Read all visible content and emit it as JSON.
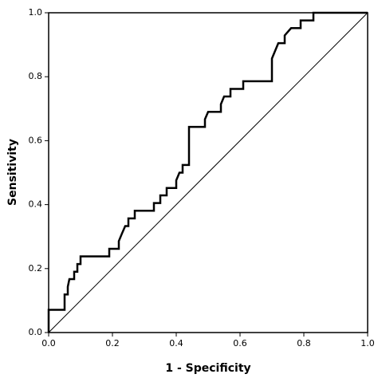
{
  "chart_data": {
    "type": "line",
    "xlabel": "1 - Specificity",
    "ylabel": "Sensitivity",
    "xlim": [
      0,
      1
    ],
    "ylim": [
      0,
      1
    ],
    "xticks": [
      {
        "value": 0,
        "label": "0.0"
      },
      0.2,
      0.4,
      0.6,
      0.8,
      {
        "value": 1,
        "label": "1.0"
      }
    ],
    "yticks": [
      {
        "value": 0,
        "label": "0.0"
      },
      0.2,
      0.4,
      0.6,
      0.8,
      {
        "value": 1,
        "label": "1.0"
      }
    ],
    "series": [
      {
        "color": "#000000",
        "x": [
          0,
          0,
          0.05,
          0.05,
          0.06,
          0.06,
          0.065,
          0.08,
          0.08,
          0.09,
          0.09,
          0.1,
          0.1,
          0.19,
          0.19,
          0.22,
          0.22,
          0.23,
          0.24,
          0.25,
          0.25,
          0.27,
          0.27,
          0.33,
          0.33,
          0.35,
          0.35,
          0.37,
          0.37,
          0.4,
          0.4,
          0.41,
          0.42,
          0.42,
          0.44,
          0.44,
          0.44,
          0.49,
          0.49,
          0.5,
          0.54,
          0.54,
          0.55,
          0.57,
          0.57,
          0.61,
          0.61,
          0.7,
          0.7,
          0.71,
          0.72,
          0.74,
          0.74,
          0.76,
          0.79,
          0.79,
          0.83,
          0.83,
          1
        ],
        "values": [
          0,
          0.071,
          0.071,
          0.119,
          0.119,
          0.143,
          0.167,
          0.167,
          0.19,
          0.19,
          0.214,
          0.214,
          0.238,
          0.238,
          0.262,
          0.262,
          0.286,
          0.31,
          0.333,
          0.333,
          0.357,
          0.357,
          0.381,
          0.381,
          0.405,
          0.405,
          0.429,
          0.429,
          0.452,
          0.452,
          0.476,
          0.5,
          0.5,
          0.524,
          0.524,
          0.548,
          0.643,
          0.643,
          0.667,
          0.69,
          0.69,
          0.714,
          0.738,
          0.738,
          0.762,
          0.762,
          0.786,
          0.786,
          0.857,
          0.881,
          0.905,
          0.905,
          0.929,
          0.952,
          0.952,
          0.976,
          0.976,
          1,
          1
        ]
      }
    ]
  }
}
